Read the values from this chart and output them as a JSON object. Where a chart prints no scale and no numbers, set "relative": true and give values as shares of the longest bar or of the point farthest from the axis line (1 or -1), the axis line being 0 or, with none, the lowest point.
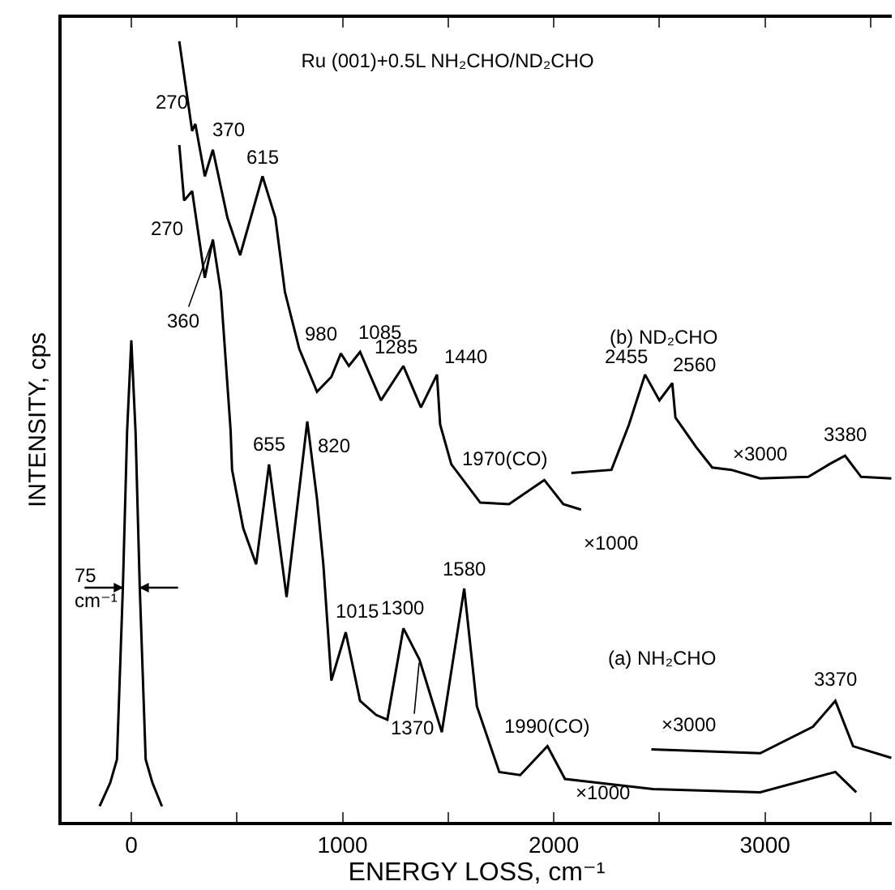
{
  "chart_data": {
    "type": "line",
    "title": "Ru (001)+0.5L NH₂CHO/ND₂CHO",
    "xlabel": "ENERGY LOSS, cm⁻¹",
    "ylabel": "INTENSITY, cps",
    "relative": true,
    "grid": false,
    "line_style": "solid",
    "marker": "none",
    "xlim": [
      -330,
      3600
    ],
    "xticks": [
      0,
      {
        "value": 500,
        "label": null
      },
      1000,
      {
        "value": 1500,
        "label": null
      },
      2000,
      {
        "value": 2500,
        "label": null
      },
      3000,
      {
        "value": 3500,
        "label": null
      }
    ],
    "series": [
      {
        "color": "#000000",
        "x": [
          -150,
          -100,
          -68,
          -40,
          -20,
          0,
          20,
          40,
          68,
          100,
          145
        ],
        "values": [
          0.02,
          0.05,
          0.08,
          0.3,
          0.5,
          0.617,
          0.5,
          0.3,
          0.08,
          0.05,
          0.02
        ]
      },
      {
        "color": "#000000",
        "x": [
          227,
          288,
          303,
          348,
          386,
          455,
          515,
          621,
          682,
          727,
          795,
          879,
          947,
          992,
          1030,
          1083,
          1182,
          1288,
          1371,
          1447,
          1462,
          1515,
          1652,
          1788,
          1955,
          2045,
          2129
        ],
        "values": [
          1.0,
          0.885,
          0.894,
          0.827,
          0.861,
          0.774,
          0.726,
          0.827,
          0.774,
          0.679,
          0.606,
          0.551,
          0.57,
          0.6,
          0.584,
          0.602,
          0.54,
          0.584,
          0.531,
          0.573,
          0.509,
          0.458,
          0.409,
          0.407,
          0.438,
          0.407,
          0.4
        ]
      },
      {
        "color": "#000000",
        "x": [
          2083,
          2273,
          2356,
          2432,
          2500,
          2561,
          2576,
          2674,
          2750,
          2841,
          2977,
          3205,
          3303,
          3379,
          3455,
          3598
        ],
        "values": [
          0.447,
          0.451,
          0.509,
          0.573,
          0.54,
          0.562,
          0.518,
          0.48,
          0.454,
          0.451,
          0.44,
          0.442,
          0.458,
          0.469,
          0.442,
          0.44
        ]
      },
      {
        "color": "#000000",
        "x": [
          227,
          250,
          288,
          348,
          386,
          424,
          470,
          477,
          530,
          591,
          652,
          735,
          833,
          879,
          909,
          947,
          1015,
          1083,
          1159,
          1212,
          1288,
          1364,
          1470,
          1576,
          1636,
          1742,
          1841,
          1970,
          2053,
          2470,
          2977,
          3333,
          3432
        ],
        "values": [
          0.867,
          0.796,
          0.808,
          0.697,
          0.746,
          0.679,
          0.502,
          0.451,
          0.376,
          0.33,
          0.458,
          0.288,
          0.513,
          0.414,
          0.33,
          0.181,
          0.243,
          0.155,
          0.137,
          0.131,
          0.248,
          0.208,
          0.115,
          0.299,
          0.148,
          0.064,
          0.06,
          0.097,
          0.055,
          0.042,
          0.038,
          0.064,
          0.038
        ]
      },
      {
        "color": "#000000",
        "x": [
          2462,
          2977,
          3227,
          3333,
          3417,
          3598
        ],
        "values": [
          0.093,
          0.088,
          0.122,
          0.155,
          0.097,
          0.082
        ]
      }
    ],
    "annotations": [
      {
        "text": "270",
        "x": 303,
        "y": 0.894
      },
      {
        "text": "370",
        "x": 386,
        "y": 0.861
      },
      {
        "text": "615",
        "x": 621,
        "y": 0.827
      },
      {
        "text": "980",
        "x": 992,
        "y": 0.6
      },
      {
        "text": "1085",
        "x": 1083,
        "y": 0.602
      },
      {
        "text": "1285",
        "x": 1288,
        "y": 0.584
      },
      {
        "text": "1440",
        "x": 1447,
        "y": 0.573
      },
      {
        "text": "1970(CO)",
        "x": 1955,
        "y": 0.438
      },
      {
        "text": "2455",
        "x": 2432,
        "y": 0.573
      },
      {
        "text": "2560",
        "x": 2561,
        "y": 0.562
      },
      {
        "text": "3380",
        "x": 3379,
        "y": 0.469
      },
      {
        "text": "270",
        "x": 288,
        "y": 0.808
      },
      {
        "text": "360",
        "x": 386,
        "y": 0.746
      },
      {
        "text": "655",
        "x": 652,
        "y": 0.458
      },
      {
        "text": "820",
        "x": 833,
        "y": 0.513
      },
      {
        "text": "1015",
        "x": 1015,
        "y": 0.243
      },
      {
        "text": "1300",
        "x": 1288,
        "y": 0.248
      },
      {
        "text": "1370",
        "x": 1364,
        "y": 0.208
      },
      {
        "text": "1580",
        "x": 1576,
        "y": 0.299
      },
      {
        "text": "1990(CO)",
        "x": 1970,
        "y": 0.097
      },
      {
        "text": "3370",
        "x": 3333,
        "y": 0.155
      },
      "(b) ND₂CHO",
      "×1000",
      "×3000",
      "(a) NH₂CHO",
      "×3000",
      "×1000",
      "75 cm⁻¹"
    ]
  }
}
